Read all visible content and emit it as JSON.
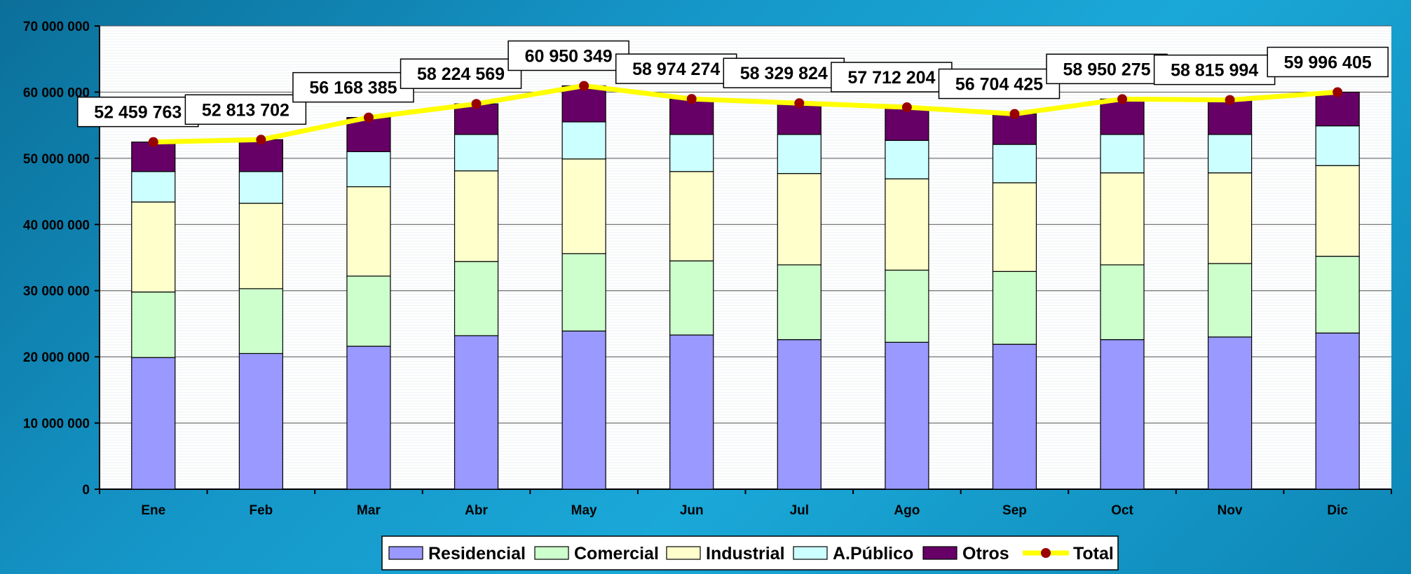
{
  "chart_data": {
    "type": "bar",
    "stacked": true,
    "categories": [
      "Ene",
      "Feb",
      "Mar",
      "Abr",
      "May",
      "Jun",
      "Jul",
      "Ago",
      "Sep",
      "Oct",
      "Nov",
      "Dic"
    ],
    "ylim": [
      0,
      70000000
    ],
    "yticks": [
      0,
      10000000,
      20000000,
      30000000,
      40000000,
      50000000,
      60000000,
      70000000
    ],
    "ytick_labels": [
      "0",
      "10 000 000",
      "20 000 000",
      "30 000 000",
      "40 000 000",
      "50 000 000",
      "60 000 000",
      "70 000 000"
    ],
    "grid": true,
    "legend_position": "bottom",
    "series": [
      {
        "name": "Residencial",
        "color": "#9999ff",
        "values": [
          19900000,
          20500000,
          21600000,
          23200000,
          23900000,
          23300000,
          22600000,
          22200000,
          21900000,
          22600000,
          23000000,
          23600000
        ]
      },
      {
        "name": "Comercial",
        "color": "#ccffcc",
        "values": [
          9900000,
          9800000,
          10600000,
          11200000,
          11700000,
          11200000,
          11300000,
          10900000,
          11000000,
          11300000,
          11100000,
          11600000
        ]
      },
      {
        "name": "Industrial",
        "color": "#ffffcc",
        "values": [
          13600000,
          12900000,
          13500000,
          13700000,
          14300000,
          13500000,
          13800000,
          13800000,
          13400000,
          13900000,
          13700000,
          13700000
        ]
      },
      {
        "name": "A.Público",
        "color": "#ccffff",
        "values": [
          4600000,
          4800000,
          5300000,
          5500000,
          5600000,
          5600000,
          5900000,
          5800000,
          5800000,
          5800000,
          5800000,
          6000000
        ]
      },
      {
        "name": "Otros",
        "color": "#660066",
        "values": [
          4459763,
          4813702,
          5168385,
          4624569,
          5450349,
          5374274,
          4729824,
          5012204,
          4604425,
          5350275,
          5215994,
          5096405
        ]
      }
    ],
    "line": {
      "name": "Total",
      "color": "#ffff00",
      "marker_color": "#990000",
      "values": [
        52459763,
        52813702,
        56168385,
        58224569,
        60950349,
        58974274,
        58329824,
        57712204,
        56704425,
        58950275,
        58815994,
        59996405
      ],
      "labels": [
        "52 459 763",
        "52 813 702",
        "56 168 385",
        "58 224 569",
        "60 950 349",
        "58 974 274",
        "58 329 824",
        "57 712 204",
        "56 704 425",
        "58 950 275",
        "58 815 994",
        "59 996 405"
      ]
    }
  }
}
